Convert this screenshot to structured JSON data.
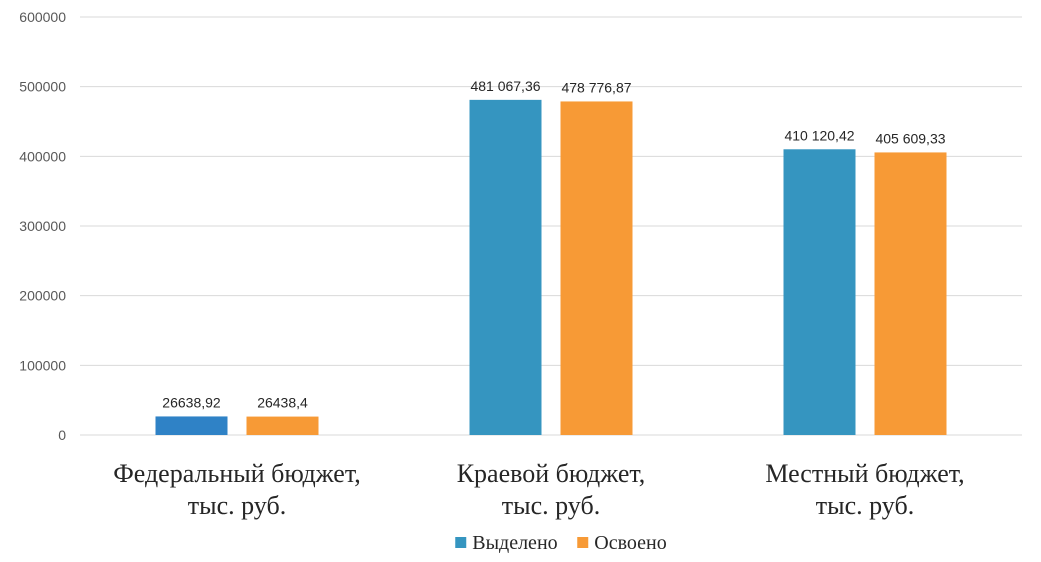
{
  "chart_data": {
    "type": "bar",
    "categories": [
      [
        "Федеральный бюджет,",
        "тыс. руб."
      ],
      [
        "Краевой бюджет,",
        "тыс. руб."
      ],
      [
        "Местный бюджет,",
        "тыс. руб."
      ]
    ],
    "series": [
      {
        "name": "Выделено",
        "values": [
          26638.92,
          481067.36,
          410120.42
        ],
        "labels": [
          "26638,92",
          "481 067,36",
          "410 120,42"
        ],
        "color": "#3595c0",
        "point_colors": [
          "#2f82c6",
          "#3595c0",
          "#3595c0"
        ]
      },
      {
        "name": "Освоено",
        "values": [
          26438.4,
          478776.87,
          405609.33
        ],
        "labels": [
          "26438,4",
          "478 776,87",
          "405 609,33"
        ],
        "color": "#f79a36"
      }
    ],
    "yticks": [
      "0",
      "100000",
      "200000",
      "300000",
      "400000",
      "500000",
      "600000"
    ],
    "ylim": [
      0,
      600000
    ],
    "grid": true,
    "legend_position": "bottom"
  }
}
